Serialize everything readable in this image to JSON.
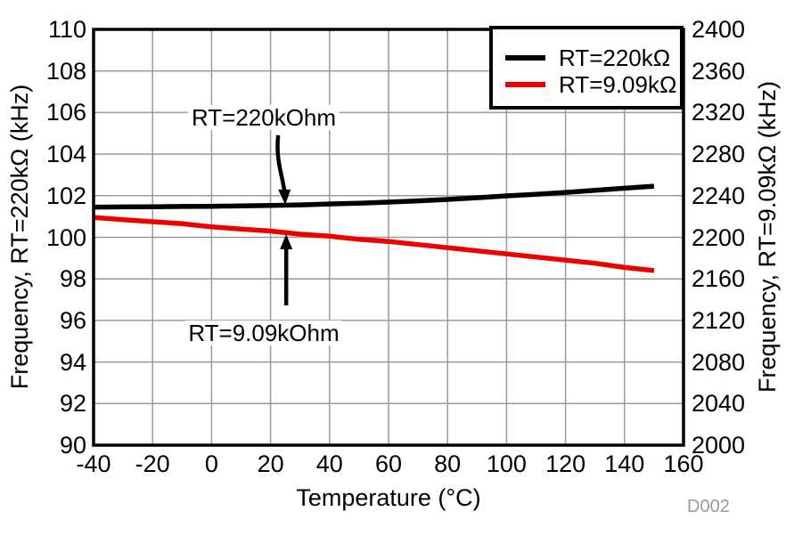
{
  "chart_data": {
    "type": "line",
    "title": "",
    "xlabel": "Temperature (°C)",
    "ylabel_left": "Frequency, RT=220kΩ (kHz)",
    "ylabel_right": "Frequency, RT=9.09kΩ (kHz)",
    "xlim": [
      -40,
      160
    ],
    "ylim_left": [
      90,
      110
    ],
    "ylim_right": [
      2000,
      2400
    ],
    "x_ticks": [
      -40,
      -20,
      0,
      20,
      40,
      60,
      80,
      100,
      120,
      140,
      160
    ],
    "left_ticks": [
      90,
      92,
      94,
      96,
      98,
      100,
      102,
      104,
      106,
      108,
      110
    ],
    "right_ticks": [
      2000,
      2040,
      2080,
      2120,
      2160,
      2200,
      2240,
      2280,
      2320,
      2360,
      2400
    ],
    "grid": true,
    "legend_position": "top-right",
    "x": [
      -40,
      -30,
      -20,
      -10,
      0,
      10,
      20,
      30,
      40,
      50,
      60,
      70,
      80,
      90,
      100,
      110,
      120,
      130,
      140,
      150
    ],
    "series": [
      {
        "name": "RT=220kΩ",
        "color": "#000000",
        "axis": "left",
        "values": [
          101.45,
          101.46,
          101.47,
          101.48,
          101.49,
          101.51,
          101.53,
          101.56,
          101.6,
          101.64,
          101.69,
          101.75,
          101.82,
          101.9,
          101.99,
          102.07,
          102.16,
          102.26,
          102.36,
          102.46
        ]
      },
      {
        "name": "RT=9.09kΩ",
        "color": "#ee0000",
        "axis": "right",
        "values": [
          2219,
          2217,
          2215,
          2213,
          2210,
          2208,
          2206,
          2203,
          2201,
          2198,
          2196,
          2193,
          2190,
          2187,
          2184,
          2181,
          2178,
          2175,
          2171,
          2168
        ]
      }
    ],
    "annotations": [
      {
        "text": "RT=220kOhm",
        "axis": "left",
        "target_x": 25,
        "target_y": 101.57,
        "direction": "down"
      },
      {
        "text": "RT=9.09kOhm",
        "axis": "right",
        "target_x": 25,
        "target_y": 2203,
        "direction": "up"
      }
    ],
    "watermark": "D002"
  },
  "colors": {
    "grid": "#999999",
    "axis": "#000000",
    "annotation_arrow": "#000000",
    "watermark": "#9a9a9a"
  }
}
